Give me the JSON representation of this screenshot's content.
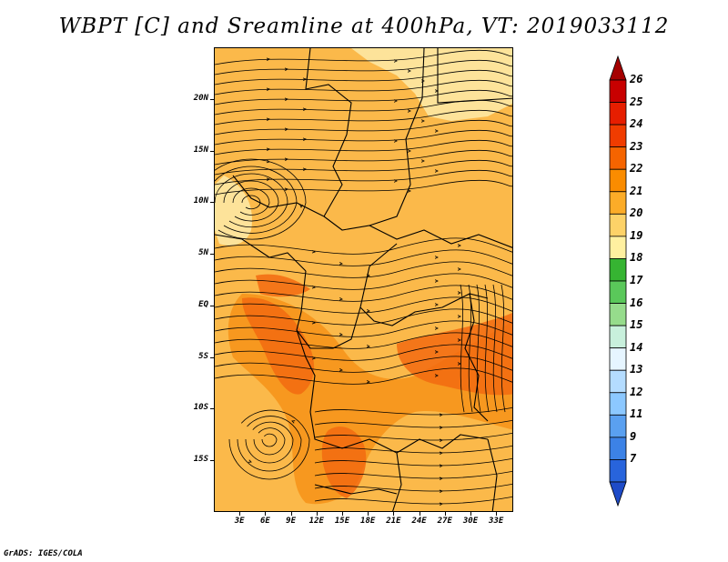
{
  "title": "WBPT [C] and Sreamline at 400hPa, VT: 2019033112",
  "credit": "GrADS: IGES/COLA",
  "lat_labels": [
    "20N",
    "15N",
    "10N",
    "5N",
    "EQ",
    "5S",
    "10S",
    "15S"
  ],
  "lon_labels": [
    "3E",
    "6E",
    "9E",
    "12E",
    "15E",
    "18E",
    "21E",
    "24E",
    "27E",
    "30E",
    "33E"
  ],
  "colorbar": {
    "labels": [
      "26",
      "25",
      "24",
      "23",
      "22",
      "21",
      "20",
      "19",
      "18",
      "17",
      "16",
      "15",
      "14",
      "13",
      "12",
      "11",
      "9",
      "7"
    ],
    "colors": [
      "#a50000",
      "#c80000",
      "#e61e00",
      "#f03c00",
      "#f56400",
      "#fa8c00",
      "#fcac28",
      "#fdd268",
      "#fff0a0",
      "#36b432",
      "#5ac85a",
      "#96dc8c",
      "#c8f0dc",
      "#e6f5ff",
      "#b4dcff",
      "#8cc8ff",
      "#5aa0f0",
      "#3c82e6",
      "#2864dc",
      "#1e4bc8"
    ]
  },
  "map_colors": {
    "base": "#fbb94a",
    "north": "#fde39a",
    "warm": "#f7981f",
    "hot": "#f26a10",
    "line": "#000000"
  }
}
